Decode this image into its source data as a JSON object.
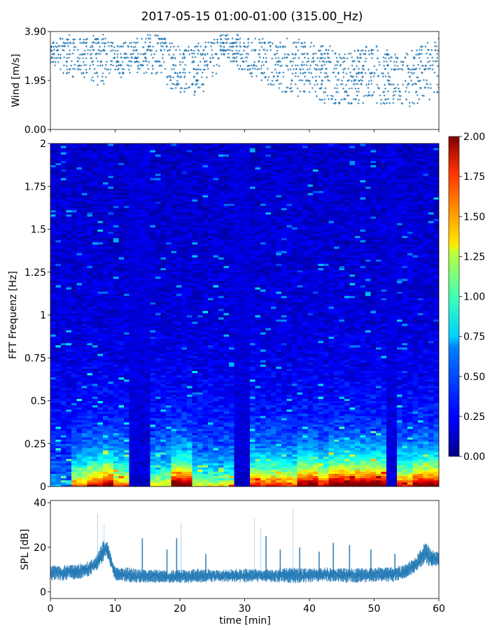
{
  "title": "2017-05-15 01:00-01:00 (315.00_Hz)",
  "chart_data": [
    {
      "type": "scatter",
      "id": "wind",
      "ylabel": "Wind [m/s]",
      "ylim": [
        0,
        3.9
      ],
      "yticks": [
        "0.00",
        "1.95",
        "3.90"
      ],
      "xlim": [
        0,
        60
      ],
      "color": "#1f77b4",
      "envelope": {
        "x": [
          0,
          3,
          6,
          8,
          10,
          13,
          16,
          18,
          20,
          22,
          25,
          27,
          30,
          32,
          35,
          38,
          40,
          43,
          45,
          48,
          50,
          53,
          55,
          58,
          60
        ],
        "low": [
          2.7,
          2.1,
          2.0,
          1.7,
          2.1,
          2.2,
          2.2,
          1.6,
          1.5,
          1.2,
          1.8,
          2.9,
          2.2,
          2.0,
          1.6,
          1.3,
          1.2,
          1.0,
          1.0,
          1.0,
          1.0,
          1.0,
          0.9,
          1.0,
          1.1
        ],
        "high": [
          3.6,
          3.7,
          3.7,
          3.8,
          3.4,
          3.5,
          3.8,
          3.6,
          3.3,
          3.4,
          3.6,
          3.8,
          3.7,
          3.6,
          3.5,
          3.6,
          3.5,
          3.3,
          3.0,
          3.2,
          3.4,
          3.0,
          3.1,
          3.5,
          3.7
        ]
      }
    },
    {
      "type": "heatmap",
      "id": "spectrogram",
      "ylabel": "FFT Frequenz [Hz]",
      "ylim": [
        0,
        2
      ],
      "yticks": [
        "0",
        "0.25",
        "0.5",
        "0.75",
        "1",
        "1.25",
        "1.5",
        "1.75",
        "2"
      ],
      "xlim": [
        0,
        60
      ],
      "colorbar": {
        "min": 0,
        "max": 2,
        "ticks": [
          "0.00",
          "0.25",
          "0.50",
          "0.75",
          "1.00",
          "1.25",
          "1.50",
          "1.75",
          "2.00"
        ],
        "colormap": "jet"
      },
      "bursts": [
        {
          "x0": 3.0,
          "x1": 6.0,
          "level": 1.1
        },
        {
          "x0": 5.5,
          "x1": 8.5,
          "level": 1.5
        },
        {
          "x0": 8.5,
          "x1": 10.0,
          "level": 1.8
        },
        {
          "x0": 10.0,
          "x1": 12.5,
          "level": 1.2
        },
        {
          "x0": 15.5,
          "x1": 19.0,
          "level": 0.9
        },
        {
          "x0": 19.0,
          "x1": 22.0,
          "level": 1.9
        },
        {
          "x0": 22.0,
          "x1": 28.5,
          "level": 0.8
        },
        {
          "x0": 31.0,
          "x1": 35.0,
          "level": 1.4
        },
        {
          "x0": 35.0,
          "x1": 38.0,
          "level": 1.3
        },
        {
          "x0": 38.0,
          "x1": 41.0,
          "level": 1.8
        },
        {
          "x0": 41.0,
          "x1": 43.0,
          "level": 1.5
        },
        {
          "x0": 43.0,
          "x1": 44.5,
          "level": 1.9
        },
        {
          "x0": 44.5,
          "x1": 48.5,
          "level": 1.9
        },
        {
          "x0": 48.5,
          "x1": 52.0,
          "level": 1.9
        },
        {
          "x0": 53.5,
          "x1": 56.0,
          "level": 1.4
        },
        {
          "x0": 56.0,
          "x1": 60.0,
          "level": 1.8
        }
      ],
      "gaps": [
        [
          12.5,
          15.5
        ],
        [
          28.5,
          31.0
        ],
        [
          52.0,
          53.5
        ]
      ]
    },
    {
      "type": "line",
      "id": "spl",
      "ylabel": "SPL [dB]",
      "xlabel": "time [min]",
      "ylim": [
        -3,
        41
      ],
      "yticks": [
        0,
        20,
        40
      ],
      "xlim": [
        0,
        60
      ],
      "xticks": [
        0,
        10,
        20,
        30,
        40,
        50,
        60
      ],
      "color": "#1f77b4",
      "x": [
        0,
        2,
        4,
        5,
        6,
        7,
        7.5,
        8,
        8.5,
        9,
        9.5,
        10,
        11,
        12,
        14,
        17,
        20,
        23,
        26,
        30,
        33,
        36,
        40,
        43,
        46,
        50,
        53,
        55,
        56,
        57,
        57.5,
        58,
        59,
        60
      ],
      "low": [
        5,
        5,
        5.5,
        6,
        7,
        9,
        10,
        12,
        16,
        14,
        9,
        5,
        5,
        4,
        4,
        4,
        4,
        4,
        4.5,
        4,
        4.5,
        4,
        4,
        4.5,
        4,
        4.5,
        4.5,
        6,
        8,
        10,
        12,
        12,
        11,
        12
      ],
      "high": [
        12,
        12,
        12.5,
        13,
        14,
        16,
        19,
        22,
        24,
        21,
        15,
        11,
        11,
        11,
        10,
        10,
        10,
        10.5,
        10,
        10.5,
        10,
        11,
        10.5,
        11,
        10.5,
        11,
        11,
        13,
        15,
        18,
        21,
        22,
        19,
        18
      ],
      "spikes": [
        {
          "x": 7.3,
          "y": 35
        },
        {
          "x": 8.3,
          "y": 30
        },
        {
          "x": 14.2,
          "y": 24
        },
        {
          "x": 18.0,
          "y": 19
        },
        {
          "x": 19.5,
          "y": 24
        },
        {
          "x": 20.2,
          "y": 31
        },
        {
          "x": 24.0,
          "y": 17
        },
        {
          "x": 31.5,
          "y": 33
        },
        {
          "x": 32.5,
          "y": 29
        },
        {
          "x": 33.3,
          "y": 25
        },
        {
          "x": 35.5,
          "y": 19
        },
        {
          "x": 37.5,
          "y": 37
        },
        {
          "x": 38.5,
          "y": 20
        },
        {
          "x": 41.5,
          "y": 18
        },
        {
          "x": 43.7,
          "y": 22
        },
        {
          "x": 46.2,
          "y": 21
        },
        {
          "x": 49.5,
          "y": 19
        },
        {
          "x": 53.2,
          "y": 17
        }
      ]
    }
  ]
}
